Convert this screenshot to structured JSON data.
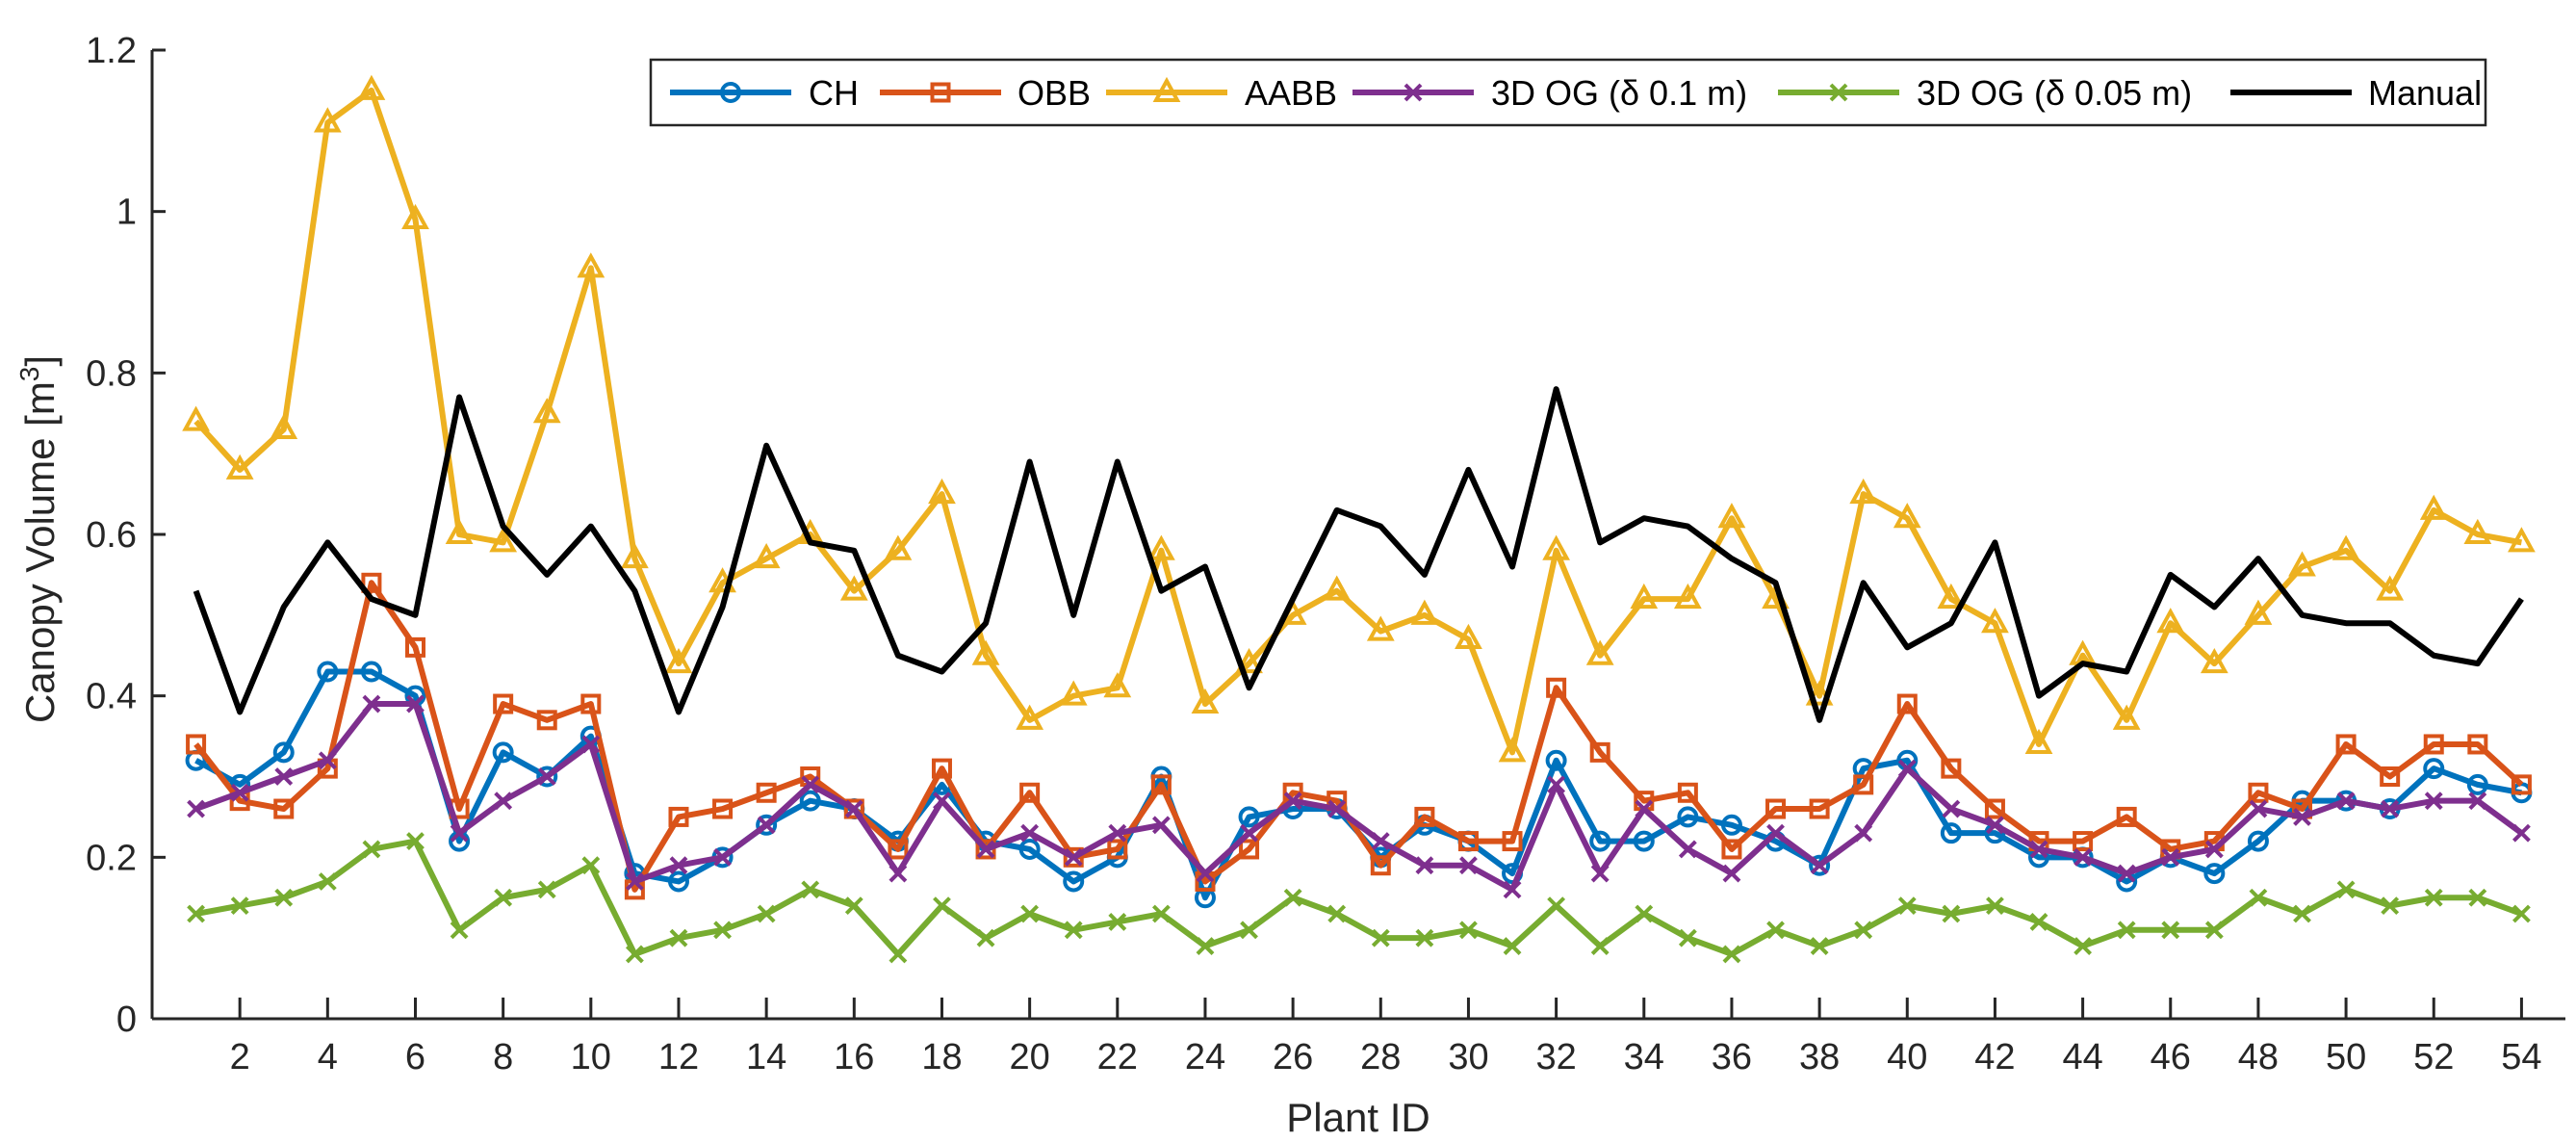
{
  "chart_data": {
    "type": "line",
    "title": "",
    "xlabel": "Plant ID",
    "ylabel": "Canopy Volume [m",
    "ylabel_superscript": "3",
    "ylabel_suffix": "]",
    "xlim": [
      0,
      55
    ],
    "ylim": [
      0,
      1.2
    ],
    "xticks": [
      2,
      4,
      6,
      8,
      10,
      12,
      14,
      16,
      18,
      20,
      22,
      24,
      26,
      28,
      30,
      32,
      34,
      36,
      38,
      40,
      42,
      44,
      46,
      48,
      50,
      52,
      54
    ],
    "yticks": [
      0,
      0.2,
      0.4,
      0.6,
      0.8,
      1,
      1.2
    ],
    "ytick_labels": [
      "0",
      "0.2",
      "0.4",
      "0.6",
      "0.8",
      "1",
      "1.2"
    ],
    "grid": false,
    "legend_position": "top-right",
    "x": [
      1,
      2,
      3,
      4,
      5,
      6,
      7,
      8,
      9,
      10,
      11,
      12,
      13,
      14,
      15,
      16,
      17,
      18,
      19,
      20,
      21,
      22,
      23,
      24,
      25,
      26,
      27,
      28,
      29,
      30,
      31,
      32,
      33,
      34,
      35,
      36,
      37,
      38,
      39,
      40,
      41,
      42,
      43,
      44,
      45,
      46,
      47,
      48,
      49,
      50,
      51,
      52,
      53,
      54
    ],
    "series": [
      {
        "name": "CH",
        "color": "#0072BD",
        "marker": "circle",
        "values": [
          0.32,
          0.29,
          0.33,
          0.43,
          0.43,
          0.4,
          0.22,
          0.33,
          0.3,
          0.35,
          0.18,
          0.17,
          0.2,
          0.24,
          0.27,
          0.26,
          0.22,
          0.29,
          0.22,
          0.21,
          0.17,
          0.2,
          0.3,
          0.15,
          0.25,
          0.26,
          0.26,
          0.2,
          0.24,
          0.22,
          0.18,
          0.32,
          0.22,
          0.22,
          0.25,
          0.24,
          0.22,
          0.19,
          0.31,
          0.32,
          0.23,
          0.23,
          0.2,
          0.2,
          0.17,
          0.2,
          0.18,
          0.22,
          0.27,
          0.27,
          0.26,
          0.31,
          0.29,
          0.28
        ]
      },
      {
        "name": "OBB",
        "color": "#D95319",
        "marker": "square",
        "values": [
          0.34,
          0.27,
          0.26,
          0.31,
          0.54,
          0.46,
          0.26,
          0.39,
          0.37,
          0.39,
          0.16,
          0.25,
          0.26,
          0.28,
          0.3,
          0.26,
          0.21,
          0.31,
          0.21,
          0.28,
          0.2,
          0.21,
          0.29,
          0.17,
          0.21,
          0.28,
          0.27,
          0.19,
          0.25,
          0.22,
          0.22,
          0.41,
          0.33,
          0.27,
          0.28,
          0.21,
          0.26,
          0.26,
          0.29,
          0.39,
          0.31,
          0.26,
          0.22,
          0.22,
          0.25,
          0.21,
          0.22,
          0.28,
          0.26,
          0.34,
          0.3,
          0.34,
          0.34,
          0.29
        ]
      },
      {
        "name": "AABB",
        "color": "#EDB120",
        "marker": "triangle",
        "values": [
          0.74,
          0.68,
          0.73,
          1.11,
          1.15,
          0.99,
          0.6,
          0.59,
          0.75,
          0.93,
          0.57,
          0.44,
          0.54,
          0.57,
          0.6,
          0.53,
          0.58,
          0.65,
          0.45,
          0.37,
          0.4,
          0.41,
          0.58,
          0.39,
          0.44,
          0.5,
          0.53,
          0.48,
          0.5,
          0.47,
          0.33,
          0.58,
          0.45,
          0.52,
          0.52,
          0.62,
          0.52,
          0.4,
          0.65,
          0.62,
          0.52,
          0.49,
          0.34,
          0.45,
          0.37,
          0.49,
          0.44,
          0.5,
          0.56,
          0.58,
          0.53,
          0.63,
          0.6,
          0.59
        ]
      },
      {
        "name": "3D OG (δ 0.1 m)",
        "color": "#7E2F8E",
        "marker": "x",
        "values": [
          0.26,
          0.28,
          0.3,
          0.32,
          0.39,
          0.39,
          0.23,
          0.27,
          0.3,
          0.34,
          0.17,
          0.19,
          0.2,
          0.24,
          0.29,
          0.26,
          0.18,
          0.27,
          0.21,
          0.23,
          0.2,
          0.23,
          0.24,
          0.18,
          0.23,
          0.27,
          0.26,
          0.22,
          0.19,
          0.19,
          0.16,
          0.29,
          0.18,
          0.26,
          0.21,
          0.18,
          0.23,
          0.19,
          0.23,
          0.31,
          0.26,
          0.24,
          0.21,
          0.2,
          0.18,
          0.2,
          0.21,
          0.26,
          0.25,
          0.27,
          0.26,
          0.27,
          0.27,
          0.23
        ]
      },
      {
        "name": "3D OG (δ 0.05 m)",
        "color": "#77AC30",
        "marker": "x",
        "values": [
          0.13,
          0.14,
          0.15,
          0.17,
          0.21,
          0.22,
          0.11,
          0.15,
          0.16,
          0.19,
          0.08,
          0.1,
          0.11,
          0.13,
          0.16,
          0.14,
          0.08,
          0.14,
          0.1,
          0.13,
          0.11,
          0.12,
          0.13,
          0.09,
          0.11,
          0.15,
          0.13,
          0.1,
          0.1,
          0.11,
          0.09,
          0.14,
          0.09,
          0.13,
          0.1,
          0.08,
          0.11,
          0.09,
          0.11,
          0.14,
          0.13,
          0.14,
          0.12,
          0.09,
          0.11,
          0.11,
          0.11,
          0.15,
          0.13,
          0.16,
          0.14,
          0.15,
          0.15,
          0.13
        ]
      },
      {
        "name": "Manual",
        "color": "#000000",
        "marker": "none",
        "values": [
          0.53,
          0.38,
          0.51,
          0.59,
          0.52,
          0.5,
          0.77,
          0.61,
          0.55,
          0.61,
          0.53,
          0.38,
          0.51,
          0.71,
          0.59,
          0.58,
          0.45,
          0.43,
          0.49,
          0.69,
          0.5,
          0.69,
          0.53,
          0.56,
          0.41,
          0.52,
          0.63,
          0.61,
          0.55,
          0.68,
          0.56,
          0.78,
          0.59,
          0.62,
          0.61,
          0.57,
          0.54,
          0.37,
          0.54,
          0.46,
          0.49,
          0.59,
          0.4,
          0.44,
          0.43,
          0.55,
          0.51,
          0.57,
          0.5,
          0.49,
          0.49,
          0.45,
          0.44,
          0.52
        ]
      }
    ]
  }
}
